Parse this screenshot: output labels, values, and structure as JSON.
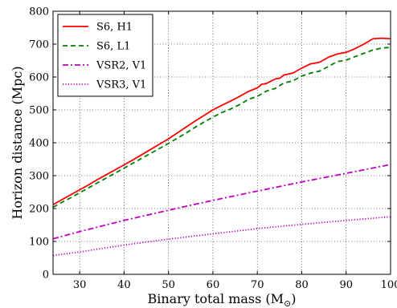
{
  "chart_data": {
    "type": "line",
    "title": "",
    "xlabel": "Binary total mass (M",
    "xlabel_sub": "⊙",
    "xlabel_close": ")",
    "ylabel": "Horizon distance (Mpc)",
    "xlim": [
      24,
      100
    ],
    "ylim": [
      0,
      800
    ],
    "xticks": [
      30,
      40,
      50,
      60,
      70,
      80,
      90,
      100
    ],
    "yticks": [
      0,
      100,
      200,
      300,
      400,
      500,
      600,
      700,
      800
    ],
    "grid": true,
    "legend_position": "top-left",
    "series": [
      {
        "name": "S6, H1",
        "color": "#ff0000",
        "style": "solid",
        "x": [
          24,
          26,
          28,
          30,
          32,
          34,
          36,
          38,
          40,
          42,
          44,
          46,
          48,
          50,
          52,
          54,
          56,
          58,
          60,
          62,
          64,
          66,
          68,
          70,
          71,
          72,
          74,
          75,
          76,
          78,
          80,
          82,
          84,
          86,
          88,
          90,
          92,
          94,
          96,
          98,
          100
        ],
        "values": [
          212,
          227,
          242,
          257,
          272,
          288,
          303,
          318,
          333,
          348,
          364,
          380,
          396,
          412,
          430,
          448,
          466,
          483,
          500,
          514,
          527,
          541,
          556,
          567,
          578,
          580,
          594,
          596,
          606,
          612,
          627,
          640,
          645,
          660,
          670,
          675,
          686,
          700,
          716,
          718,
          716
        ]
      },
      {
        "name": "S6, L1",
        "color": "#008000",
        "style": "dashed",
        "x": [
          24,
          26,
          28,
          30,
          32,
          34,
          36,
          38,
          40,
          42,
          44,
          46,
          48,
          50,
          52,
          54,
          56,
          58,
          60,
          62,
          64,
          66,
          68,
          70,
          72,
          74,
          76,
          78,
          80,
          82,
          84,
          86,
          88,
          90,
          92,
          94,
          96,
          98,
          100
        ],
        "values": [
          204,
          219,
          233,
          248,
          263,
          278,
          293,
          308,
          323,
          338,
          353,
          368,
          383,
          398,
          414,
          430,
          447,
          463,
          478,
          492,
          503,
          516,
          532,
          541,
          557,
          565,
          582,
          588,
          603,
          612,
          618,
          632,
          647,
          651,
          662,
          672,
          682,
          688,
          690
        ]
      },
      {
        "name": "VSR2, V1",
        "color": "#bf00bf",
        "style": "dashdot",
        "x": [
          24,
          30,
          40,
          50,
          60,
          70,
          80,
          90,
          100
        ],
        "values": [
          108,
          130,
          164,
          195,
          225,
          253,
          281,
          307,
          334
        ]
      },
      {
        "name": "VSR3, V1",
        "color": "#bf00bf",
        "style": "dotted",
        "x": [
          24,
          30,
          40,
          50,
          60,
          70,
          80,
          90,
          100
        ],
        "values": [
          57,
          68,
          89,
          107,
          123,
          139,
          152,
          164,
          175
        ]
      }
    ]
  }
}
